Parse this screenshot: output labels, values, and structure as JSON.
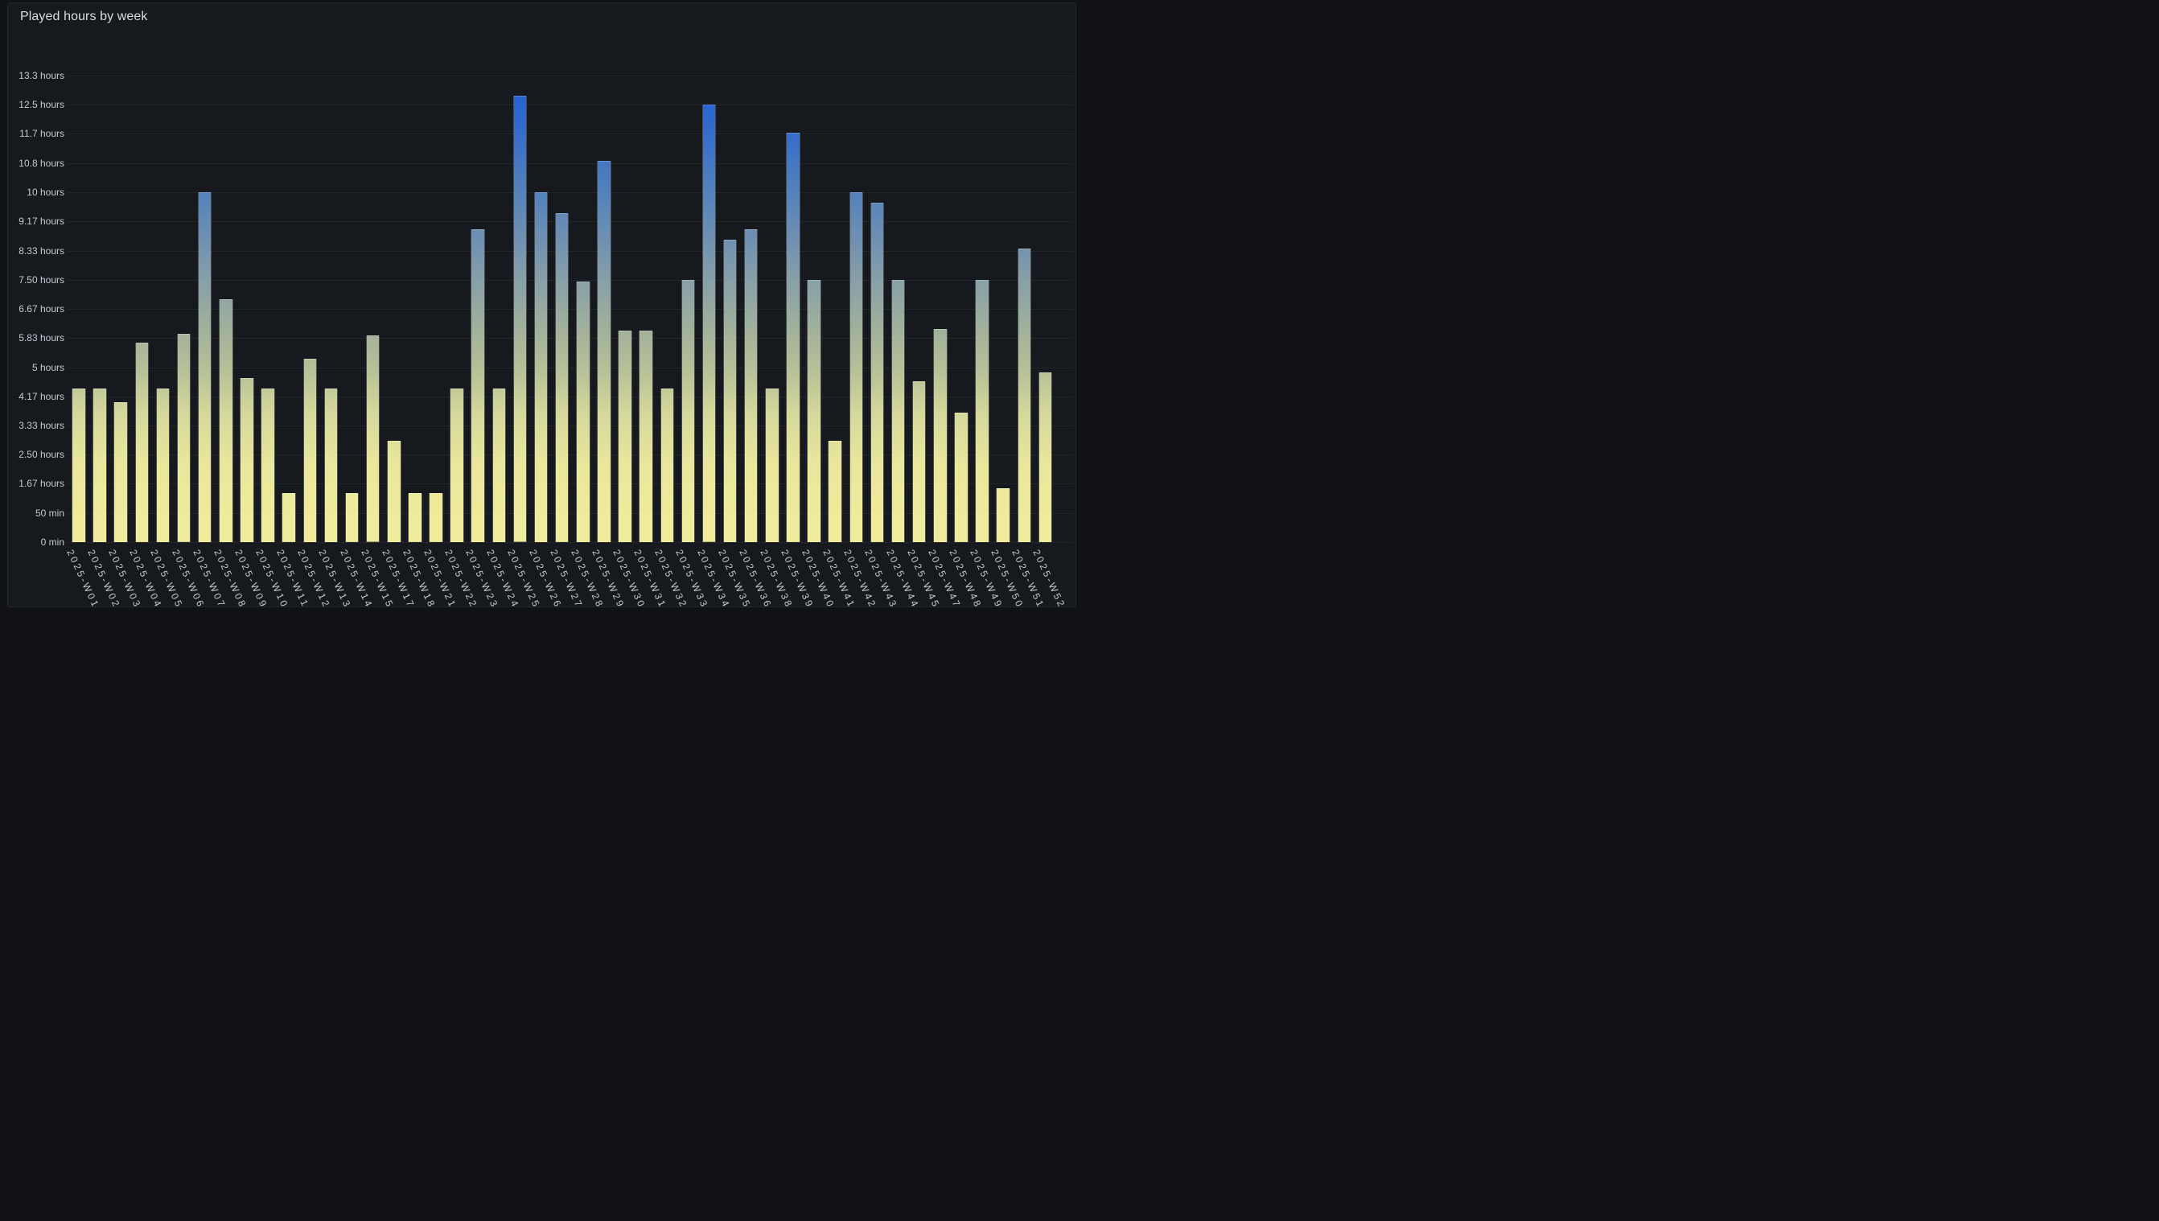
{
  "panel": {
    "title": "Played hours by week"
  },
  "colors": {
    "page_background": "#101217",
    "panel_background": "#16191d",
    "panel_border": "#24262c",
    "grid": "rgba(204,204,220,0.07)",
    "axis_text": "#c8c9d2",
    "title_text": "#dcdde3",
    "bar_outline": "rgba(255,255,255,0.22)",
    "gradient_low": "#f1ed9d",
    "gradient_high": "#2061d8"
  },
  "chart_data": {
    "type": "bar",
    "title": "Played hours by week",
    "xlabel": "",
    "ylabel": "",
    "ylim": [
      0,
      13.333
    ],
    "grid": "horizontal",
    "legend": "none",
    "unit": "hours",
    "categories": [
      "2025-W01",
      "2025-W02",
      "2025-W03",
      "2025-W04",
      "2025-W05",
      "2025-W06",
      "2025-W07",
      "2025-W08",
      "2025-W09",
      "2025-W10",
      "2025-W11",
      "2025-W12",
      "2025-W13",
      "2025-W14",
      "2025-W15",
      "2025-W17",
      "2025-W18",
      "2025-W21",
      "2025-W22",
      "2025-W23",
      "2025-W24",
      "2025-W25",
      "2025-W26",
      "2025-W27",
      "2025-W28",
      "2025-W29",
      "2025-W30",
      "2025-W31",
      "2025-W32",
      "2025-W33",
      "2025-W34",
      "2025-W35",
      "2025-W36",
      "2025-W38",
      "2025-W39",
      "2025-W40",
      "2025-W41",
      "2025-W42",
      "2025-W43",
      "2025-W44",
      "2025-W45",
      "2025-W47",
      "2025-W48",
      "2025-W49",
      "2025-W50",
      "2025-W51",
      "2025-W52"
    ],
    "values": [
      4.4,
      4.4,
      4.0,
      5.7,
      4.4,
      5.95,
      10.0,
      6.95,
      4.7,
      4.4,
      1.4,
      5.25,
      4.4,
      1.4,
      5.9,
      2.9,
      1.4,
      1.4,
      4.4,
      8.95,
      4.4,
      12.75,
      10.0,
      9.4,
      7.45,
      10.9,
      6.05,
      6.05,
      4.4,
      7.5,
      12.5,
      8.65,
      8.95,
      4.4,
      11.7,
      7.5,
      2.9,
      10.0,
      9.7,
      7.5,
      4.6,
      6.1,
      3.7,
      7.5,
      1.55,
      8.4,
      4.85
    ],
    "y_ticks": [
      {
        "label": "0 min",
        "hours": 0
      },
      {
        "label": "50 min",
        "hours": 0.833
      },
      {
        "label": "1.67 hours",
        "hours": 1.667
      },
      {
        "label": "2.50 hours",
        "hours": 2.5
      },
      {
        "label": "3.33 hours",
        "hours": 3.333
      },
      {
        "label": "4.17 hours",
        "hours": 4.167
      },
      {
        "label": "5 hours",
        "hours": 5
      },
      {
        "label": "5.83 hours",
        "hours": 5.833
      },
      {
        "label": "6.67 hours",
        "hours": 6.667
      },
      {
        "label": "7.50 hours",
        "hours": 7.5
      },
      {
        "label": "8.33 hours",
        "hours": 8.333
      },
      {
        "label": "9.17 hours",
        "hours": 9.167
      },
      {
        "label": "10 hours",
        "hours": 10
      },
      {
        "label": "10.8 hours",
        "hours": 10.833
      },
      {
        "label": "11.7 hours",
        "hours": 11.667
      },
      {
        "label": "12.5 hours",
        "hours": 12.5
      },
      {
        "label": "13.3 hours",
        "hours": 13.333
      }
    ],
    "value_gradient": [
      {
        "pos": 0.0,
        "color": "#f1ed9d"
      },
      {
        "pos": 0.17,
        "color": "#e9e79c"
      },
      {
        "pos": 0.28,
        "color": "#d4d79b"
      },
      {
        "pos": 0.36,
        "color": "#b9c298"
      },
      {
        "pos": 0.45,
        "color": "#a2b29a"
      },
      {
        "pos": 0.55,
        "color": "#8aa1a6"
      },
      {
        "pos": 0.65,
        "color": "#6f90b2"
      },
      {
        "pos": 0.75,
        "color": "#5382bb"
      },
      {
        "pos": 0.85,
        "color": "#3c70c7"
      },
      {
        "pos": 0.93,
        "color": "#2b65d0"
      },
      {
        "pos": 1.0,
        "color": "#2061d8"
      }
    ]
  }
}
